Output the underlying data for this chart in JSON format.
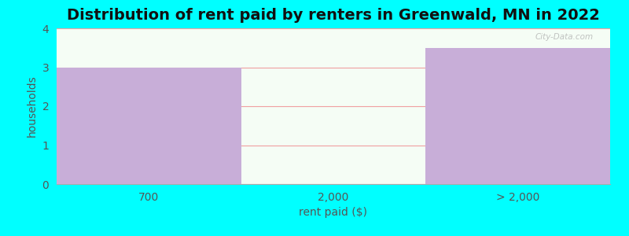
{
  "title": "Distribution of rent paid by renters in Greenwald, MN in 2022",
  "categories": [
    "700",
    "2,000",
    "> 2,000"
  ],
  "values": [
    3,
    0,
    3.5
  ],
  "bar_colors": [
    "#c8aed8",
    "#dff0d8",
    "#c8aed8"
  ],
  "xlabel": "rent paid ($)",
  "ylabel": "households",
  "ylim": [
    0,
    4
  ],
  "yticks": [
    0,
    1,
    2,
    3,
    4
  ],
  "background_color": "#00ffff",
  "plot_bg_top": "#f5fdf5",
  "plot_bg_bottom": "#e8f5e8",
  "title_fontsize": 14,
  "axis_label_fontsize": 10,
  "tick_fontsize": 10,
  "grid_color": "#f0a0a0",
  "bar_width": 1.0,
  "watermark": "City-Data.com"
}
